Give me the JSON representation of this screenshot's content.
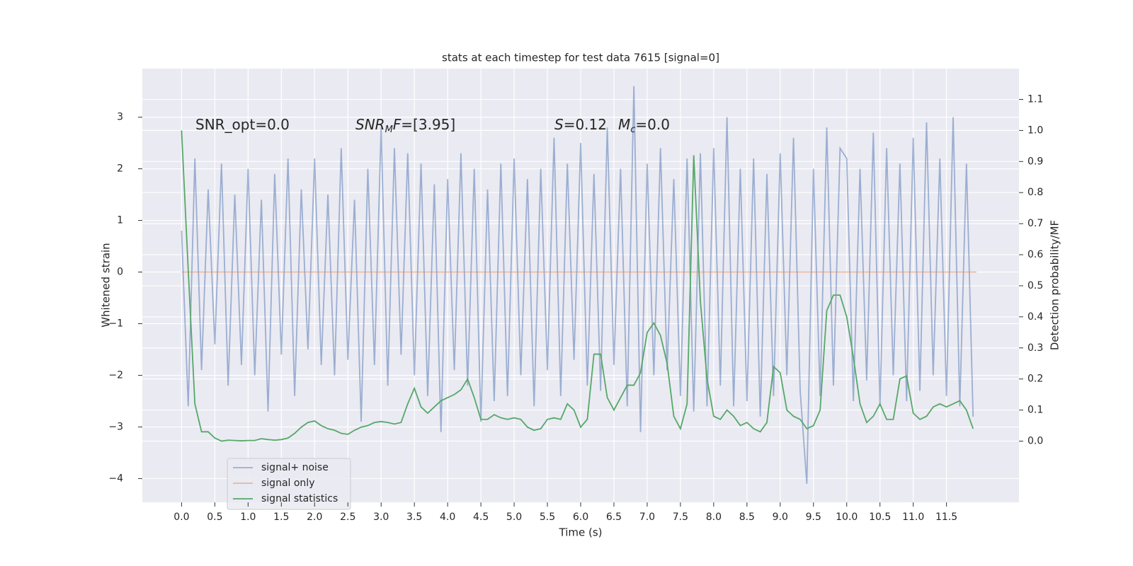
{
  "chart_data": {
    "type": "line",
    "title": "stats at each timestep for test data 7615 [signal=0]",
    "x_label": "Time (s)",
    "y_label": "Whitened strain",
    "y2_label": "Detection probability/MF",
    "xlim": [
      -0.59,
      12.59
    ],
    "ylim": [
      -4.46,
      3.94
    ],
    "y2lim": [
      -0.197,
      1.199
    ],
    "grid": true,
    "legend_position": "lower left",
    "xticks": [
      {
        "value": 0,
        "label": "0.0"
      },
      0.5,
      {
        "value": 1,
        "label": "1.0"
      },
      1.5,
      {
        "value": 2,
        "label": "2.0"
      },
      2.5,
      {
        "value": 3,
        "label": "3.0"
      },
      3.5,
      {
        "value": 4,
        "label": "4.0"
      },
      4.5,
      {
        "value": 5,
        "label": "5.0"
      },
      5.5,
      {
        "value": 6,
        "label": "6.0"
      },
      6.5,
      {
        "value": 7,
        "label": "7.0"
      },
      7.5,
      {
        "value": 8,
        "label": "8.0"
      },
      8.5,
      {
        "value": 9,
        "label": "9.0"
      },
      9.5,
      {
        "value": 10,
        "label": "10.0"
      },
      10.5,
      {
        "value": 11,
        "label": "11.0"
      },
      11.5
    ],
    "yticks": [
      {
        "value": -4,
        "label": "−4"
      },
      {
        "value": -3,
        "label": "−3"
      },
      {
        "value": -2,
        "label": "−2"
      },
      {
        "value": -1,
        "label": "−1"
      },
      0,
      1,
      2,
      3
    ],
    "y2ticks": [
      {
        "value": 0,
        "label": "0.0"
      },
      0.1,
      0.2,
      0.3,
      0.4,
      0.5,
      0.6,
      0.7,
      0.8,
      0.9,
      {
        "value": 1,
        "label": "1.0"
      },
      1.1
    ],
    "x": [
      0,
      0.1,
      0.2,
      0.3,
      0.4,
      0.5,
      0.6,
      0.7,
      0.8,
      0.9,
      1,
      1.1,
      1.2,
      1.3,
      1.4,
      1.5,
      1.6,
      1.7,
      1.8,
      1.9,
      2,
      2.1,
      2.2,
      2.3,
      2.4,
      2.5,
      2.6,
      2.7,
      2.8,
      2.9,
      3,
      3.1,
      3.2,
      3.3,
      3.4,
      3.5,
      3.6,
      3.7,
      3.8,
      3.9,
      4,
      4.1,
      4.2,
      4.3,
      4.4,
      4.5,
      4.6,
      4.7,
      4.8,
      4.9,
      5,
      5.1,
      5.2,
      5.3,
      5.4,
      5.5,
      5.6,
      5.7,
      5.8,
      5.9,
      6,
      6.1,
      6.2,
      6.3,
      6.4,
      6.5,
      6.6,
      6.7,
      6.8,
      6.9,
      7,
      7.1,
      7.2,
      7.3,
      7.4,
      7.5,
      7.6,
      7.7,
      7.8,
      7.9,
      8,
      8.1,
      8.2,
      8.3,
      8.4,
      8.5,
      8.6,
      8.7,
      8.8,
      8.9,
      9,
      9.1,
      9.2,
      9.3,
      9.4,
      9.5,
      9.6,
      9.7,
      9.8,
      9.9,
      10,
      10.1,
      10.2,
      10.3,
      10.4,
      10.5,
      10.6,
      10.7,
      10.8,
      10.9,
      11,
      11.1,
      11.2,
      11.3,
      11.4,
      11.5,
      11.6,
      11.7,
      11.8,
      11.9
    ],
    "series": [
      {
        "name": "signal+ noise",
        "color": "#4c72b0",
        "opacity": 0.5,
        "values": [
          0.8,
          -2.6,
          2.2,
          -1.9,
          1.6,
          -1.4,
          2.1,
          -2.2,
          1.5,
          -1.8,
          2.0,
          -2.0,
          1.4,
          -2.7,
          1.9,
          -1.6,
          2.2,
          -2.4,
          1.6,
          -1.5,
          2.2,
          -1.8,
          1.5,
          -2.0,
          2.4,
          -1.7,
          1.4,
          -2.9,
          2.0,
          -1.8,
          2.8,
          -2.2,
          2.4,
          -1.6,
          2.3,
          -2.0,
          2.1,
          -2.4,
          1.7,
          -3.1,
          1.8,
          -1.9,
          2.3,
          -2.2,
          2.0,
          -2.9,
          1.6,
          -2.5,
          2.1,
          -2.4,
          2.2,
          -2.0,
          1.8,
          -2.6,
          2.0,
          -1.9,
          2.6,
          -2.4,
          2.1,
          -1.7,
          2.5,
          -2.2,
          1.9,
          -2.3,
          2.8,
          -1.8,
          2.0,
          -2.6,
          3.6,
          -3.1,
          2.1,
          -2.0,
          2.4,
          -1.9,
          1.8,
          -2.4,
          2.2,
          -2.7,
          2.3,
          -2.6,
          2.4,
          -2.2,
          3.0,
          -2.6,
          2.0,
          -2.5,
          2.2,
          -2.8,
          1.9,
          -2.4,
          2.3,
          -2.0,
          2.6,
          -2.3,
          -4.1,
          2.0,
          -2.4,
          2.8,
          -2.2,
          2.4,
          2.2,
          -2.5,
          2.0,
          -2.1,
          2.7,
          -2.6,
          2.4,
          -2.0,
          2.1,
          -2.5,
          2.6,
          -2.3,
          2.9,
          -2.0,
          2.2,
          -2.4,
          3.0,
          -2.6,
          2.1,
          -2.8
        ]
      },
      {
        "name": "signal only",
        "color": "#dd8452",
        "opacity": 0.5,
        "x": [
          0,
          11.95
        ],
        "values": [
          0,
          0
        ]
      },
      {
        "name": "signal statistics",
        "color": "#55a868",
        "opacity": 1,
        "axis": "y2",
        "values": [
          1.0,
          0.55,
          0.12,
          0.03,
          0.03,
          0.01,
          0.0,
          0.003,
          0.002,
          0.001,
          0.002,
          0.002,
          0.008,
          0.005,
          0.003,
          0.005,
          0.01,
          0.025,
          0.045,
          0.06,
          0.065,
          0.05,
          0.04,
          0.035,
          0.025,
          0.022,
          0.035,
          0.045,
          0.05,
          0.06,
          0.063,
          0.06,
          0.055,
          0.06,
          0.12,
          0.17,
          0.11,
          0.09,
          0.11,
          0.13,
          0.14,
          0.15,
          0.165,
          0.2,
          0.14,
          0.07,
          0.07,
          0.085,
          0.075,
          0.07,
          0.075,
          0.07,
          0.045,
          0.035,
          0.04,
          0.07,
          0.075,
          0.07,
          0.12,
          0.1,
          0.045,
          0.07,
          0.28,
          0.28,
          0.14,
          0.1,
          0.14,
          0.18,
          0.18,
          0.22,
          0.35,
          0.38,
          0.34,
          0.25,
          0.08,
          0.04,
          0.12,
          0.92,
          0.45,
          0.2,
          0.08,
          0.07,
          0.1,
          0.08,
          0.05,
          0.06,
          0.04,
          0.03,
          0.06,
          0.24,
          0.22,
          0.1,
          0.08,
          0.07,
          0.04,
          0.05,
          0.1,
          0.42,
          0.47,
          0.47,
          0.4,
          0.27,
          0.12,
          0.06,
          0.08,
          0.12,
          0.07,
          0.07,
          0.2,
          0.21,
          0.09,
          0.07,
          0.08,
          0.11,
          0.12,
          0.11,
          0.12,
          0.13,
          0.1,
          0.04
        ]
      }
    ],
    "annotations": [
      {
        "parts": [
          {
            "text": "SNR_opt=0.0",
            "style": "normal"
          }
        ]
      },
      {
        "parts": [
          {
            "text": "SNR",
            "style": "italic"
          },
          {
            "text": "M",
            "style": "sub"
          },
          {
            "text": "F",
            "style": "italic"
          },
          {
            "text": "=[3.95]",
            "style": "normal"
          }
        ]
      },
      {
        "parts": [
          {
            "text": "S",
            "style": "italic"
          },
          {
            "text": "=0.12",
            "style": "normal"
          },
          {
            "text": "M",
            "style": "italic"
          },
          {
            "text": "c",
            "style": "sub"
          },
          {
            "text": "=0.0",
            "style": "normal"
          }
        ]
      }
    ]
  }
}
